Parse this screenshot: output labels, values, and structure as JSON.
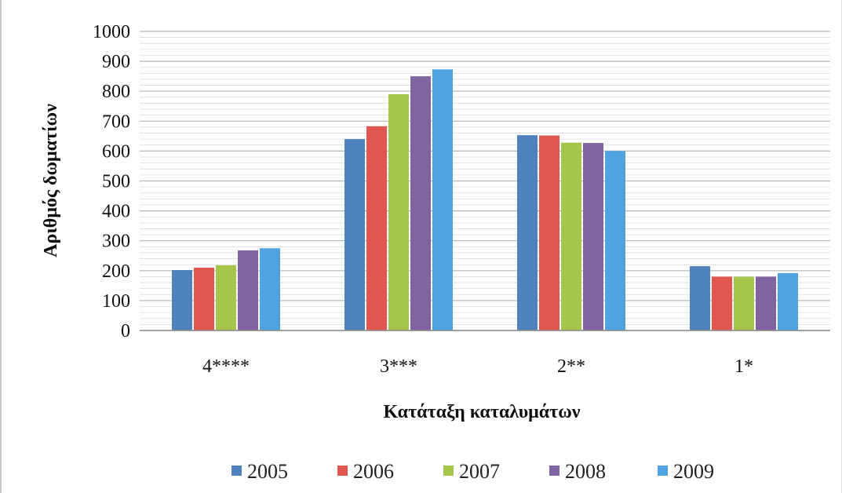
{
  "chart_data": {
    "type": "bar",
    "title": "",
    "xlabel": "Κατάταξη καταλυμάτων",
    "ylabel": "Αριθμός δωματίων",
    "categories": [
      "4****",
      "3***",
      "2**",
      "1*"
    ],
    "ylim": [
      0,
      1000
    ],
    "yticks": [
      0,
      100,
      200,
      300,
      400,
      500,
      600,
      700,
      800,
      900,
      1000
    ],
    "grid": true,
    "legend_position": "bottom",
    "series": [
      {
        "name": "2005",
        "color": "#4f81bd",
        "values": [
          202,
          640,
          653,
          215
        ]
      },
      {
        "name": "2006",
        "color": "#e0574f",
        "values": [
          210,
          683,
          652,
          180
        ]
      },
      {
        "name": "2007",
        "color": "#a6c64b",
        "values": [
          218,
          790,
          628,
          180
        ]
      },
      {
        "name": "2008",
        "color": "#8064a2",
        "values": [
          268,
          850,
          627,
          180
        ]
      },
      {
        "name": "2009",
        "color": "#4fa3e0",
        "values": [
          275,
          873,
          600,
          192
        ]
      }
    ]
  }
}
